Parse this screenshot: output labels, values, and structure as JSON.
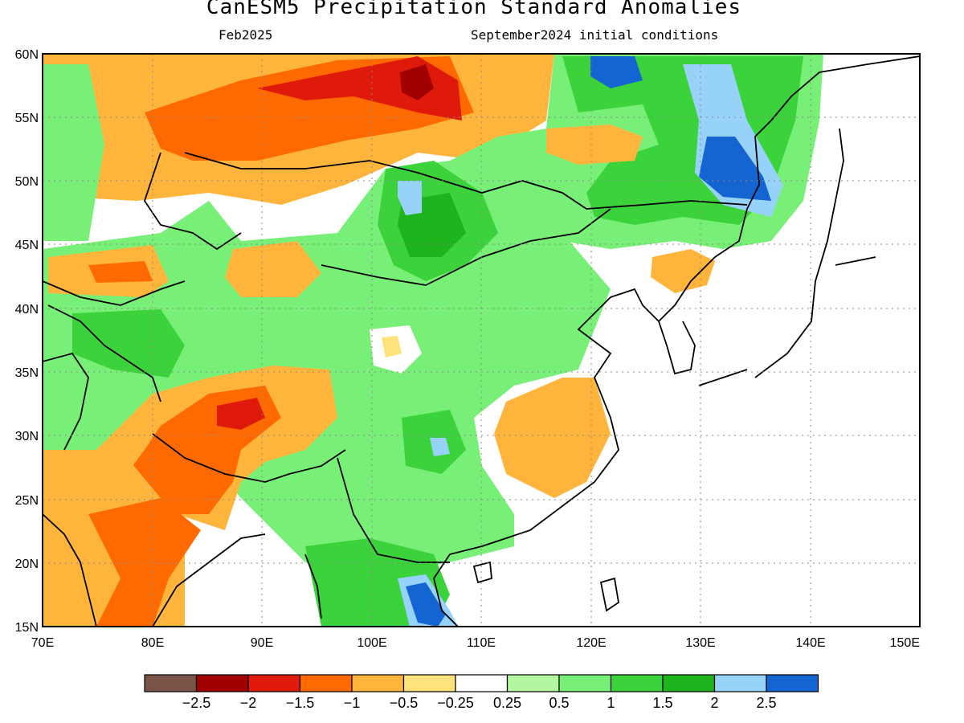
{
  "header": {
    "title": "CanESM5 Precipitation Standard Anomalies",
    "valid_month": "Feb2025",
    "initial_conditions": "September2024 initial conditions"
  },
  "map": {
    "lon_range": [
      70,
      150
    ],
    "lat_range": [
      15,
      60
    ],
    "lon_ticks": [
      "70E",
      "80E",
      "90E",
      "100E",
      "110E",
      "120E",
      "130E",
      "140E",
      "150E"
    ],
    "lat_ticks": [
      "60N",
      "55N",
      "50N",
      "45N",
      "40N",
      "35N",
      "30N",
      "25N",
      "20N",
      "15N"
    ],
    "gridlines": true,
    "coastlines": true,
    "country_borders": true
  },
  "colorbar": {
    "colors": [
      "#7a5447",
      "#a00000",
      "#e01a0a",
      "#ff6a00",
      "#ffb43c",
      "#ffe27a",
      "#ffffff",
      "#b4f5a0",
      "#78f078",
      "#3cd23c",
      "#1eb41e",
      "#96d2fa",
      "#1464d2"
    ],
    "labels": [
      "−2.5",
      "−2",
      "−1.5",
      "−1",
      "−0.5",
      "−0.25",
      "0.25",
      "0.5",
      "1",
      "1.5",
      "2",
      "2.5"
    ]
  },
  "anomaly_regions": [
    {
      "name": "mongolia-siberia-dry",
      "lon": [
        80,
        108
      ],
      "lat": [
        48,
        60
      ],
      "value": -1.5
    },
    {
      "name": "baikal-core",
      "lon": [
        102,
        106
      ],
      "lat": [
        56,
        59
      ],
      "value": -2.2
    },
    {
      "name": "tibet-dry",
      "lon": [
        80,
        95
      ],
      "lat": [
        27,
        35
      ],
      "value": -1.2
    },
    {
      "name": "tibet-core",
      "lon": [
        87,
        90
      ],
      "lat": [
        30,
        32.5
      ],
      "value": -1.8
    },
    {
      "name": "india-dry",
      "lon": [
        70,
        92
      ],
      "lat": [
        15,
        30
      ],
      "value": -1.0
    },
    {
      "name": "west-dry",
      "lon": [
        72,
        80
      ],
      "lat": [
        41,
        45
      ],
      "value": -0.8
    },
    {
      "name": "south-china-dry",
      "lon": [
        113,
        120
      ],
      "lat": [
        25,
        34
      ],
      "value": -0.7
    },
    {
      "name": "manchuria-dry",
      "lon": [
        117,
        124
      ],
      "lat": [
        50,
        54
      ],
      "value": -0.6
    },
    {
      "name": "korea-dry",
      "lon": [
        125,
        130
      ],
      "lat": [
        41,
        45
      ],
      "value": -0.6
    },
    {
      "name": "central-asia-wet",
      "lon": [
        70,
        90
      ],
      "lat": [
        34,
        42
      ],
      "value": 0.8
    },
    {
      "name": "mongolia-wet",
      "lon": [
        98,
        112
      ],
      "lat": [
        38,
        50
      ],
      "value": 1.1
    },
    {
      "name": "china-wet",
      "lon": [
        100,
        112
      ],
      "lat": [
        20,
        38
      ],
      "value": 0.9
    },
    {
      "name": "northeast-wet",
      "lon": [
        118,
        140
      ],
      "lat": [
        44,
        60
      ],
      "value": 1.4
    },
    {
      "name": "amur-very-wet",
      "lon": [
        129,
        134
      ],
      "lat": [
        47,
        55
      ],
      "value": 2.6
    },
    {
      "name": "okhotsk-wet",
      "lon": [
        119,
        124
      ],
      "lat": [
        57,
        60
      ],
      "value": 2.5
    },
    {
      "name": "vietnam-very-wet",
      "lon": [
        103,
        108
      ],
      "lat": [
        15,
        18
      ],
      "value": 2.2
    }
  ]
}
